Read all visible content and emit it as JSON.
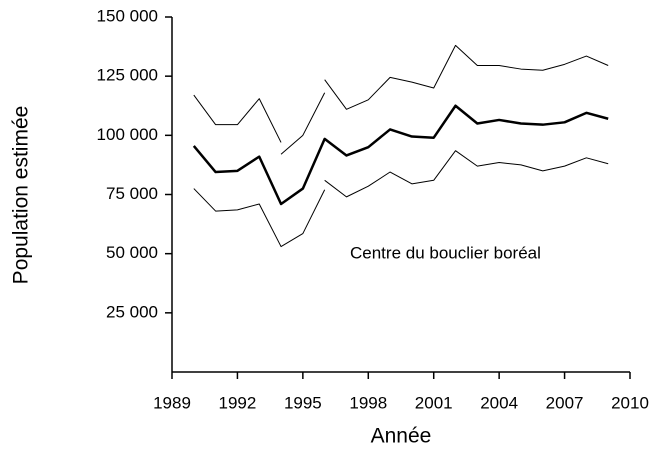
{
  "chart_data": {
    "type": "line",
    "x_label": "Année",
    "y_label": "Population estimée",
    "annotation": "Centre du bouclier boréal",
    "xlim": [
      1989,
      2010
    ],
    "xticks": [
      1989,
      1992,
      1995,
      1998,
      2001,
      2004,
      2007,
      2010
    ],
    "ylim": [
      0,
      150000
    ],
    "yticks": [
      {
        "value": 25000,
        "label": "25 000"
      },
      {
        "value": 50000,
        "label": "50 000"
      },
      {
        "value": 75000,
        "label": "75 000"
      },
      {
        "value": 100000,
        "label": "100 000"
      },
      {
        "value": 125000,
        "label": "125 000"
      },
      {
        "value": 150000,
        "label": "150 000"
      }
    ],
    "series": [
      {
        "color": "#000000",
        "line_width": 1,
        "x": [
          1990,
          1991,
          1992,
          1993,
          1994,
          null,
          1994,
          1995,
          1996,
          null,
          1996,
          1997,
          1998,
          1999,
          2000,
          2001,
          2002,
          2003,
          2004,
          2005,
          2006,
          2007,
          2008,
          2009
        ],
        "values": [
          117000,
          104500,
          104500,
          115500,
          97000,
          null,
          92000,
          100000,
          118000,
          null,
          123500,
          111000,
          115000,
          124500,
          122500,
          120000,
          138000,
          129500,
          129500,
          128000,
          127500,
          130000,
          133500,
          129500
        ]
      },
      {
        "color": "#000000",
        "line_width": 2.5,
        "x": [
          1990,
          1991,
          1992,
          1993,
          1994,
          1995,
          1996,
          1997,
          1998,
          1999,
          2000,
          2001,
          2002,
          2003,
          2004,
          2005,
          2006,
          2007,
          2008,
          2009
        ],
        "values": [
          95500,
          84500,
          85000,
          91000,
          71000,
          77500,
          98500,
          91500,
          95000,
          102500,
          99500,
          99000,
          112500,
          105000,
          106500,
          105000,
          104500,
          105500,
          109500,
          107000
        ]
      },
      {
        "color": "#000000",
        "line_width": 1,
        "x": [
          1990,
          1991,
          1992,
          1993,
          1994,
          1995,
          1996,
          null,
          1996,
          1997,
          1998,
          1999,
          2000,
          2001,
          2002,
          2003,
          2004,
          2005,
          2006,
          2007,
          2008,
          2009
        ],
        "values": [
          77500,
          68000,
          68500,
          71000,
          53000,
          58500,
          77000,
          null,
          81000,
          74000,
          78500,
          84500,
          79500,
          81000,
          93500,
          87000,
          88500,
          87500,
          85000,
          87000,
          90500,
          88000
        ]
      }
    ]
  }
}
